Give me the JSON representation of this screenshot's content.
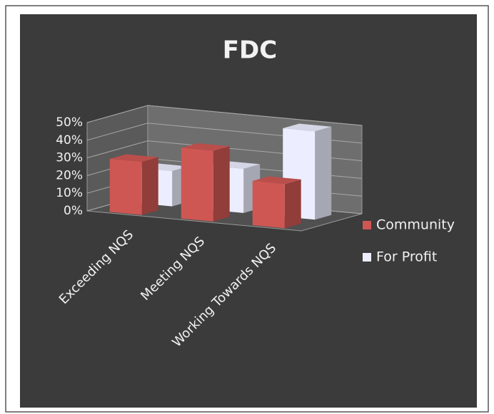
{
  "chart_data": {
    "type": "bar3d",
    "title": "FDC",
    "categories": [
      "Exceeding NQS",
      "Meeting NQS",
      "Working Towards NQS"
    ],
    "series": [
      {
        "name": "Community",
        "color": "#cf5753",
        "values": [
          30,
          40,
          25
        ]
      },
      {
        "name": "For Profit",
        "color": "#eceeff",
        "values": [
          20,
          25,
          50
        ]
      }
    ],
    "ylim": [
      0,
      50
    ],
    "yticks": [
      {
        "value": 0,
        "label": "0%"
      },
      {
        "value": 10,
        "label": "10%"
      },
      {
        "value": 20,
        "label": "20%"
      },
      {
        "value": 30,
        "label": "30%"
      },
      {
        "value": 40,
        "label": "40%"
      },
      {
        "value": 50,
        "label": "50%"
      }
    ],
    "grid": true,
    "legend": "right"
  }
}
